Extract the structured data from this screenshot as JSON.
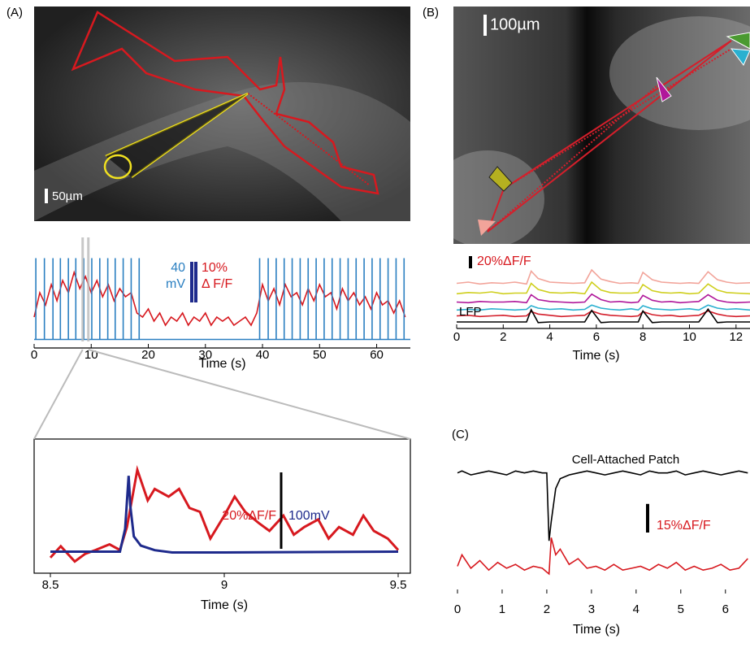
{
  "figure": {
    "panel_labels": [
      "(A)",
      "(B)",
      "(C)"
    ],
    "image_scale_labels": [
      "50µm",
      "100µm"
    ]
  },
  "chart_data": [
    {
      "type": "line",
      "xlabel": "Time (s)",
      "xlim": [
        0,
        65.9
      ],
      "xticks": [
        0,
        10,
        20,
        30,
        40,
        50,
        60
      ],
      "ylim": [
        0,
        23
      ],
      "y2lim": [
        -2,
        90
      ],
      "x": [
        0,
        1,
        2,
        3,
        4,
        5,
        6,
        7,
        8,
        9,
        10,
        11,
        12,
        13,
        14,
        15,
        16,
        17,
        18,
        19,
        20,
        21,
        22,
        23,
        24,
        25,
        26,
        27,
        28,
        29,
        30,
        31,
        32,
        33,
        34,
        35,
        36,
        37,
        38,
        39,
        40,
        41,
        42,
        43,
        44,
        45,
        46,
        47,
        48,
        49,
        50,
        51,
        52,
        53,
        54,
        55,
        56,
        57,
        58,
        59,
        60,
        61,
        62,
        63,
        64,
        65
      ],
      "series": [
        {
          "color": "#d7191f",
          "values": [
            6,
            12,
            9,
            14,
            10,
            15,
            12,
            17,
            13,
            16,
            12,
            15,
            11,
            14,
            10,
            13,
            11,
            12,
            7,
            6,
            8,
            5,
            7,
            4,
            6,
            5,
            7,
            4,
            6,
            5,
            7,
            4,
            6,
            5,
            6,
            4,
            5,
            6,
            4,
            7,
            14,
            10,
            13,
            9,
            14,
            11,
            12,
            9,
            13,
            10,
            14,
            11,
            12,
            8,
            13,
            10,
            12,
            9,
            11,
            8,
            12,
            9,
            10,
            7,
            10,
            6
          ]
        },
        {
          "type": "spike",
          "axis": "y2",
          "color": "#2a7fc1",
          "x": [
            0.3,
            1.8,
            3.3,
            4.6,
            6.0,
            7.3,
            8.7,
            10.1,
            11.5,
            12.9,
            14.2,
            15.6,
            17.0,
            18.4,
            39.5,
            41.0,
            42.4,
            43.8,
            45.2,
            46.6,
            48.0,
            49.4,
            50.8,
            52.2,
            53.6,
            55.0,
            56.4,
            57.8,
            59.2,
            60.6,
            62.0,
            63.4,
            64.8
          ],
          "values": [
            80,
            80,
            80,
            80,
            80,
            80,
            80,
            80,
            80,
            80,
            80,
            80,
            80,
            80,
            80,
            80,
            80,
            80,
            80,
            80,
            80,
            80,
            80,
            80,
            80,
            80,
            80,
            80,
            80,
            80,
            80,
            80,
            80
          ]
        }
      ],
      "scale_bars": [
        {
          "value": 40,
          "axis": "y2",
          "color": "#2a7fc1",
          "labels": [
            "40",
            "mV"
          ]
        },
        {
          "value": 10,
          "color": "#d7191f",
          "labels": [
            "10%",
            "Δ F/F"
          ]
        }
      ]
    },
    {
      "type": "line",
      "xlabel": "Time (s)",
      "xlim": [
        8.5,
        9.5
      ],
      "xticks": [
        8.5,
        9,
        9.5
      ],
      "ylim": [
        -4,
        29
      ],
      "y2lim": [
        -23,
        143
      ],
      "series": [
        {
          "color": "#d7191f",
          "x": [
            8.5,
            8.53,
            8.57,
            8.6,
            8.63,
            8.67,
            8.7,
            8.72,
            8.75,
            8.78,
            8.8,
            8.84,
            8.87,
            8.9,
            8.93,
            8.96,
            9.0,
            9.03,
            9.06,
            9.1,
            9.13,
            9.17,
            9.2,
            9.23,
            9.27,
            9.3,
            9.33,
            9.37,
            9.4,
            9.43,
            9.47,
            9.5
          ],
          "values": [
            -1,
            2,
            -2,
            0,
            1,
            2.5,
            1,
            7,
            22,
            14,
            17,
            15,
            17,
            12,
            11,
            4,
            10,
            15,
            11,
            8,
            6,
            10,
            5,
            7,
            9,
            4,
            7,
            5,
            10,
            6,
            4,
            1
          ]
        },
        {
          "axis": "y2",
          "color": "#1e2a8c",
          "x": [
            8.5,
            8.7,
            8.715,
            8.725,
            8.73,
            8.74,
            8.76,
            8.8,
            8.85,
            9.0,
            9.5
          ],
          "values": [
            0,
            0,
            30,
            100,
            60,
            20,
            8,
            2,
            -1,
            -1,
            0
          ]
        }
      ],
      "scale_bars": [
        {
          "value": 20,
          "color": "#d7191f",
          "labels": [
            "20%ΔF/F"
          ]
        },
        {
          "value": 100,
          "axis": "y2",
          "color": "#1e2a8c",
          "labels": [
            "100mV"
          ]
        }
      ]
    },
    {
      "type": "line",
      "xlabel": "Time (s)",
      "xlim": [
        0,
        12.6
      ],
      "xticks": [
        0,
        2,
        4,
        6,
        8,
        10,
        12
      ],
      "ylim": [
        0,
        40
      ],
      "x": [
        0,
        0.5,
        1,
        1.5,
        2,
        2.5,
        3,
        3.2,
        3.5,
        4,
        4.5,
        5,
        5.5,
        5.8,
        6.2,
        6.6,
        7,
        7.5,
        7.8,
        8.0,
        8.4,
        8.8,
        9.2,
        9.6,
        10,
        10.4,
        10.8,
        11.2,
        11.6,
        12,
        12.6
      ],
      "series": [
        {
          "color": "#f2a49a",
          "values": [
            2,
            4,
            1,
            3,
            2,
            4,
            1,
            22,
            10,
            4,
            3,
            2,
            3,
            24,
            9,
            5,
            2,
            3,
            2,
            20,
            8,
            4,
            3,
            2,
            3,
            2,
            21,
            8,
            4,
            2,
            3
          ]
        },
        {
          "color": "#cfcf1e",
          "values": [
            1,
            3,
            2,
            4,
            1,
            2,
            2,
            18,
            8,
            3,
            2,
            3,
            1,
            20,
            7,
            3,
            2,
            2,
            3,
            16,
            6,
            3,
            2,
            3,
            1,
            2,
            17,
            7,
            3,
            2,
            1
          ]
        },
        {
          "color": "#b0179a",
          "values": [
            2,
            1,
            3,
            2,
            2,
            3,
            1,
            14,
            6,
            3,
            2,
            1,
            2,
            15,
            6,
            2,
            3,
            1,
            2,
            13,
            5,
            2,
            3,
            1,
            2,
            3,
            14,
            5,
            2,
            1,
            2
          ]
        },
        {
          "color": "#2ab0d0",
          "values": [
            1,
            2,
            1,
            3,
            2,
            1,
            2,
            8,
            4,
            2,
            3,
            1,
            2,
            9,
            4,
            2,
            1,
            3,
            1,
            8,
            3,
            2,
            1,
            2,
            3,
            1,
            9,
            4,
            2,
            3,
            1
          ]
        },
        {
          "color": "#d41f2b",
          "values": [
            2,
            3,
            1,
            2,
            3,
            1,
            2,
            9,
            5,
            3,
            1,
            2,
            3,
            10,
            5,
            3,
            2,
            1,
            2,
            9,
            4,
            2,
            3,
            1,
            2,
            3,
            10,
            5,
            2,
            1,
            2
          ]
        },
        {
          "name": "LFP",
          "color": "#000000",
          "values": [
            0,
            0,
            0,
            0,
            0,
            0,
            0,
            20,
            -1,
            0,
            0,
            0,
            0,
            19,
            -1,
            0,
            0,
            0,
            0,
            18,
            -1,
            0,
            0,
            0,
            0,
            0,
            21,
            -1,
            0,
            0,
            0
          ]
        }
      ],
      "scale_bars": [
        {
          "value": 20,
          "color": "#d7191f",
          "labels": [
            "20%ΔF/F"
          ]
        }
      ]
    },
    {
      "type": "line",
      "title": "Cell-Attached Patch",
      "xlabel": "Time (s)",
      "xlim": [
        0,
        6.55
      ],
      "xticks": [
        0,
        1,
        2,
        3,
        4,
        5,
        6
      ],
      "ylim": [
        -6,
        60
      ],
      "y2lim": [
        -58,
        7
      ],
      "x": [
        0,
        0.1,
        0.3,
        0.5,
        0.7,
        0.9,
        1.1,
        1.3,
        1.5,
        1.7,
        1.9,
        2.0,
        2.05,
        2.1,
        2.2,
        2.3,
        2.5,
        2.7,
        2.9,
        3.1,
        3.3,
        3.5,
        3.7,
        3.9,
        4.1,
        4.3,
        4.5,
        4.7,
        4.9,
        5.1,
        5.3,
        5.5,
        5.7,
        5.9,
        6.1,
        6.3,
        6.5
      ],
      "series": [
        {
          "color": "#d7191f",
          "values": [
            4,
            10,
            3,
            7,
            2,
            6,
            3,
            5,
            2,
            4,
            3,
            1,
            0,
            19,
            10,
            13,
            5,
            8,
            3,
            4,
            2,
            5,
            2,
            3,
            4,
            2,
            5,
            3,
            6,
            2,
            4,
            2,
            3,
            5,
            2,
            3,
            8
          ]
        },
        {
          "axis": "y2",
          "color": "#000000",
          "values": [
            0,
            1,
            -1,
            0,
            1,
            0,
            -1,
            1,
            0,
            1,
            0,
            0,
            -35,
            -25,
            -8,
            -3,
            -1,
            0,
            1,
            0,
            -1,
            0,
            1,
            0,
            -1,
            1,
            0,
            0,
            1,
            -1,
            0,
            1,
            0,
            -1,
            0,
            1,
            0
          ]
        }
      ],
      "scale_bars": [
        {
          "value": 15,
          "color": "#d7191f",
          "labels": [
            "15%ΔF/F"
          ]
        }
      ]
    }
  ]
}
